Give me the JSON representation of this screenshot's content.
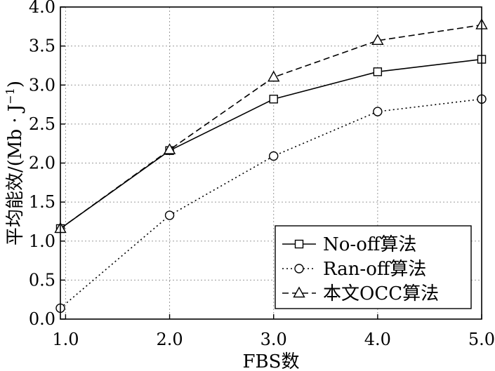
{
  "chart_data": {
    "type": "line",
    "title": "",
    "xlabel": "FBS数",
    "ylabel": "平均能效/(Mb · J",
    "ylabel_sup": "−1",
    "ylabel_close": ")",
    "xlim": [
      0.95,
      5.0
    ],
    "ylim": [
      0.0,
      4.0
    ],
    "grid": true,
    "legend_position": "bottom-right",
    "x_ticks": [
      1.0,
      2.0,
      3.0,
      4.0,
      5.0
    ],
    "x_tick_labels": [
      "1.0",
      "2.0",
      "3.0",
      "4.0",
      "5.0"
    ],
    "y_ticks": [
      0.0,
      0.5,
      1.0,
      1.5,
      2.0,
      2.5,
      3.0,
      3.5,
      4.0
    ],
    "y_tick_labels": [
      "0.0",
      "0.5",
      "1.0",
      "1.5",
      "2.0",
      "2.5",
      "3.0",
      "3.5",
      "4.0"
    ],
    "x": [
      0.95,
      2.0,
      3.0,
      4.0,
      5.0
    ],
    "series": [
      {
        "name": "No-off算法",
        "values": [
          1.16,
          2.16,
          2.82,
          3.17,
          3.33
        ],
        "marker": "square",
        "linestyle": "solid"
      },
      {
        "name": "Ran-off算法",
        "values": [
          0.14,
          1.33,
          2.09,
          2.66,
          2.82
        ],
        "marker": "circle",
        "linestyle": "dotted"
      },
      {
        "name": "本文OCC算法",
        "values": [
          1.16,
          2.17,
          3.1,
          3.57,
          3.77
        ],
        "marker": "triangle",
        "linestyle": "dashed"
      }
    ],
    "colors": {
      "line": "#000000",
      "grid": "#9a9a9a",
      "background": "#ffffff"
    }
  }
}
